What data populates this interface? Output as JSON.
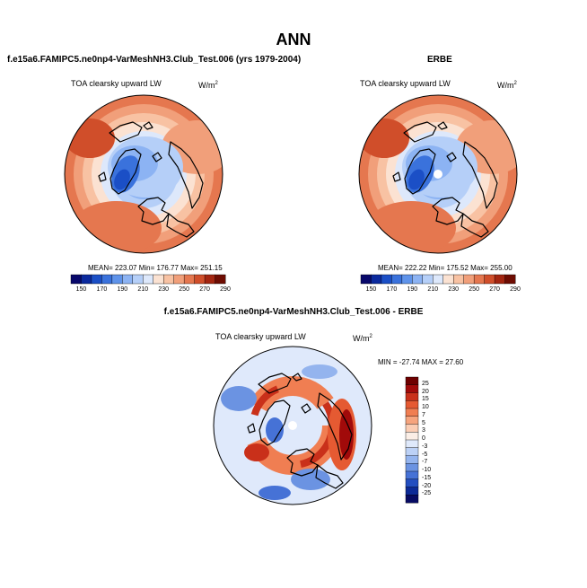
{
  "page_title": "ANN",
  "panels": [
    {
      "title": "f.e15a6.FAMIPC5.ne0np4-VarMeshNH3.Club_Test.006 (yrs 1979-2004)",
      "variable": "TOA clearsky upward LW",
      "units_base": "W/m",
      "units_exp": "2",
      "stats_text": "MEAN= 223.07  Min= 176.77  Max= 251.15",
      "colorbar_ticks": [
        "150",
        "170",
        "190",
        "210",
        "230",
        "250",
        "270",
        "290"
      ]
    },
    {
      "title": "ERBE",
      "variable": "TOA clearsky upward LW",
      "units_base": "W/m",
      "units_exp": "2",
      "stats_text": "MEAN= 222.22  Min= 175.52  Max= 255.00",
      "colorbar_ticks": [
        "150",
        "170",
        "190",
        "210",
        "230",
        "250",
        "270",
        "290"
      ]
    },
    {
      "title": "f.e15a6.FAMIPC5.ne0np4-VarMeshNH3.Club_Test.006 - ERBE",
      "variable": "TOA clearsky upward LW",
      "units_base": "W/m",
      "units_exp": "2",
      "stats_text": "MIN = -27.74 MAX =  27.60",
      "colorbar_ticks": [
        "25",
        "20",
        "15",
        "10",
        "7",
        "5",
        "3",
        "0",
        "-3",
        "-5",
        "-7",
        "-10",
        "-15",
        "-20",
        "-25"
      ]
    }
  ],
  "colors": {
    "abs_palette": [
      "#08086b",
      "#0b2a9e",
      "#1b4fc6",
      "#3a72dc",
      "#5f93ea",
      "#8cb3f3",
      "#b5cff8",
      "#dde8fb",
      "#fbe2d2",
      "#f8c2a3",
      "#f19f7a",
      "#e5774f",
      "#d04e2a",
      "#a32510",
      "#6e0c02"
    ],
    "diff_palette": [
      "#6e0000",
      "#a10a0a",
      "#c9301a",
      "#e55a32",
      "#f07e52",
      "#f6a47e",
      "#fbcdb4",
      "#fbeee6",
      "#dfe9fb",
      "#bcd1f6",
      "#94b4ee",
      "#6b93e2",
      "#4672d6",
      "#234ec0",
      "#0c2a97",
      "#070b63"
    ],
    "land_outline": "#000000"
  }
}
